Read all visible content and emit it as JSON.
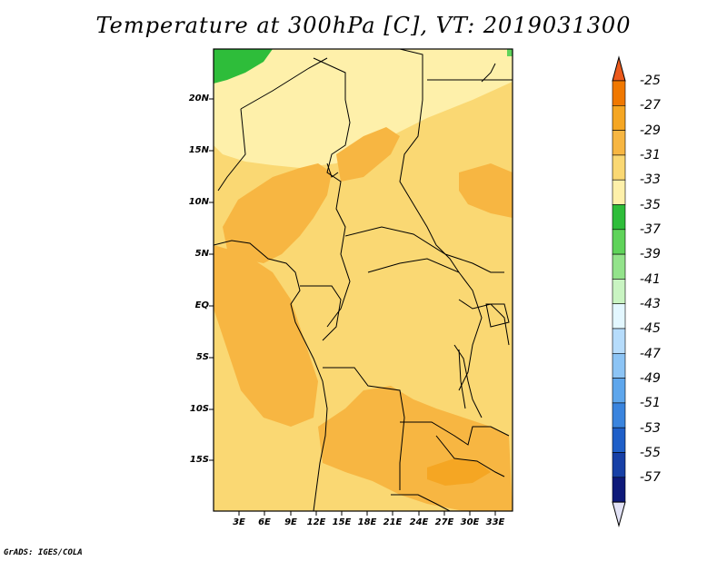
{
  "title": "Temperature at 300hPa [C], VT: 2019031300",
  "credit": "GrADS: IGES/COLA",
  "lat_labels": [
    "20N",
    "15N",
    "10N",
    "5N",
    "EQ",
    "5S",
    "10S",
    "15S"
  ],
  "lon_labels": [
    "3E",
    "6E",
    "9E",
    "12E",
    "15E",
    "18E",
    "21E",
    "24E",
    "27E",
    "30E",
    "33E"
  ],
  "colorbar": {
    "labels": [
      "-25",
      "-27",
      "-29",
      "-31",
      "-33",
      "-35",
      "-37",
      "-39",
      "-41",
      "-43",
      "-45",
      "-47",
      "-49",
      "-51",
      "-53",
      "-55",
      "-57"
    ],
    "colors": [
      "#ec5a1c",
      "#f07800",
      "#f5a623",
      "#f7b642",
      "#fad873",
      "#fef0aa",
      "#2ebd3a",
      "#5fd35a",
      "#93e38b",
      "#c9f4c2",
      "#e3f7ff",
      "#b6dcfb",
      "#8cc4f5",
      "#5ea6ec",
      "#3a84de",
      "#1f5fc8",
      "#1740a6",
      "#0e1a7a",
      "#e2e2f6"
    ]
  }
}
